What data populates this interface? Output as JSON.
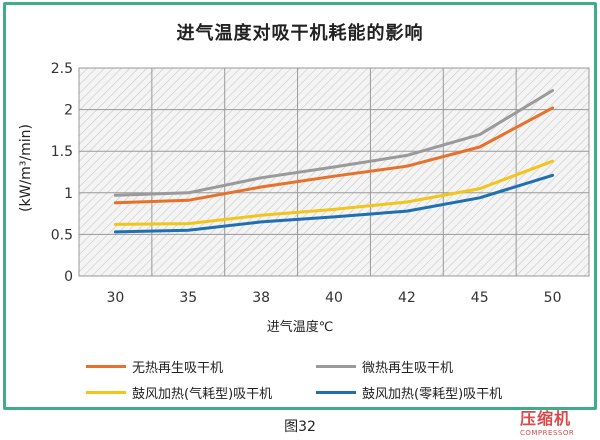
{
  "chart_data": {
    "type": "line",
    "title": "进气温度对吸干机耗能的影响",
    "xlabel": "进气温度℃",
    "ylabel": "(kW/m³/min)",
    "categories": [
      "30",
      "35",
      "38",
      "40",
      "42",
      "45",
      "50"
    ],
    "yticks": [
      "0",
      "0.5",
      "1",
      "1.5",
      "2",
      "2.5"
    ],
    "ylim": [
      0,
      2.5
    ],
    "grid": true,
    "series": [
      {
        "name": "无热再生吸干机",
        "color": "#e8712a",
        "values": [
          0.88,
          0.91,
          1.07,
          1.2,
          1.32,
          1.55,
          2.02
        ]
      },
      {
        "name": "微热再生吸干机",
        "color": "#9a9a9a",
        "values": [
          0.97,
          1.0,
          1.18,
          1.31,
          1.45,
          1.7,
          2.23
        ]
      },
      {
        "name": "鼓风加热(气耗型)吸干机",
        "color": "#f3c51a",
        "values": [
          0.62,
          0.63,
          0.73,
          0.8,
          0.89,
          1.05,
          1.38
        ]
      },
      {
        "name": "鼓风加热(零耗型)吸干机",
        "color": "#1f6fb3",
        "values": [
          0.53,
          0.55,
          0.65,
          0.71,
          0.78,
          0.94,
          1.21
        ]
      }
    ]
  },
  "caption": "图32",
  "logo": {
    "main": "压缩机",
    "sub": "COMPRESSOR"
  }
}
